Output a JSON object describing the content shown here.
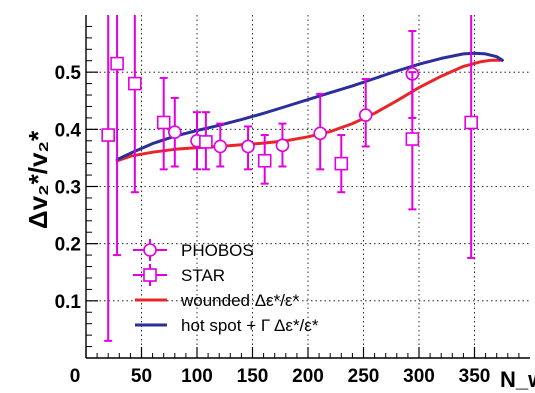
{
  "chart_data": {
    "type": "scatter",
    "title": "",
    "xlabel": "N_w",
    "ylabel": "Δv₂*/v₂*",
    "xlim": [
      0,
      400
    ],
    "ylim": [
      0,
      0.6
    ],
    "grid": true,
    "x_ticks": [
      "0",
      "50",
      "100",
      "150",
      "200",
      "250",
      "300",
      "350"
    ],
    "x_tick_values": [
      0,
      50,
      100,
      150,
      200,
      250,
      300,
      350
    ],
    "y_ticks": [
      "0.1",
      "0.2",
      "0.3",
      "0.4",
      "0.5"
    ],
    "y_tick_values": [
      0.1,
      0.2,
      0.3,
      0.4,
      0.5
    ],
    "legend_position": "bottom-left",
    "series": [
      {
        "name": "PHOBOS",
        "kind": "points",
        "marker": "circle",
        "color": "#e000e0",
        "points": [
          {
            "x": 80,
            "y": 0.395,
            "lo": 0.335,
            "hi": 0.455
          },
          {
            "x": 100,
            "y": 0.38,
            "lo": 0.33,
            "hi": 0.43
          },
          {
            "x": 121,
            "y": 0.37,
            "lo": 0.335,
            "hi": 0.41
          },
          {
            "x": 146,
            "y": 0.37,
            "lo": 0.33,
            "hi": 0.405
          },
          {
            "x": 177,
            "y": 0.372,
            "lo": 0.335,
            "hi": 0.41
          },
          {
            "x": 211,
            "y": 0.393,
            "lo": 0.33,
            "hi": 0.462
          },
          {
            "x": 252,
            "y": 0.425,
            "lo": 0.37,
            "hi": 0.488
          },
          {
            "x": 294,
            "y": 0.497,
            "lo": 0.42,
            "hi": 0.572
          }
        ]
      },
      {
        "name": "STAR",
        "kind": "points",
        "marker": "square",
        "color": "#e000e0",
        "points": [
          {
            "x": 20,
            "y": 0.39,
            "lo": 0.03,
            "hi": 0.6
          },
          {
            "x": 28,
            "y": 0.515,
            "lo": 0.18,
            "hi": 0.6
          },
          {
            "x": 44,
            "y": 0.48,
            "lo": 0.29,
            "hi": 0.6
          },
          {
            "x": 70,
            "y": 0.412,
            "lo": 0.33,
            "hi": 0.49
          },
          {
            "x": 108,
            "y": 0.378,
            "lo": 0.33,
            "hi": 0.43
          },
          {
            "x": 161,
            "y": 0.345,
            "lo": 0.305,
            "hi": 0.39
          },
          {
            "x": 230,
            "y": 0.34,
            "lo": 0.29,
            "hi": 0.39
          },
          {
            "x": 294,
            "y": 0.383,
            "lo": 0.26,
            "hi": 0.5
          },
          {
            "x": 347,
            "y": 0.412,
            "lo": 0.175,
            "hi": 0.6
          }
        ]
      },
      {
        "name": "wounded Δε*/ε*",
        "kind": "line",
        "color": "#e8262a",
        "x": [
          28,
          40,
          60,
          80,
          100,
          120,
          140,
          160,
          180,
          200,
          220,
          240,
          260,
          280,
          300,
          320,
          340,
          355,
          365,
          375
        ],
        "y": [
          0.345,
          0.353,
          0.36,
          0.365,
          0.368,
          0.37,
          0.373,
          0.376,
          0.38,
          0.387,
          0.396,
          0.41,
          0.428,
          0.45,
          0.473,
          0.493,
          0.51,
          0.518,
          0.521,
          0.521
        ]
      },
      {
        "name": "hot spot + Γ Δε*/ε*",
        "kind": "line",
        "color": "#2a2f9a",
        "x": [
          28,
          40,
          60,
          80,
          100,
          120,
          140,
          160,
          180,
          200,
          220,
          240,
          260,
          280,
          300,
          320,
          340,
          350,
          360,
          370,
          375
        ],
        "y": [
          0.347,
          0.358,
          0.375,
          0.388,
          0.398,
          0.407,
          0.417,
          0.428,
          0.44,
          0.452,
          0.464,
          0.476,
          0.489,
          0.502,
          0.514,
          0.524,
          0.532,
          0.533,
          0.532,
          0.527,
          0.521
        ]
      }
    ]
  }
}
